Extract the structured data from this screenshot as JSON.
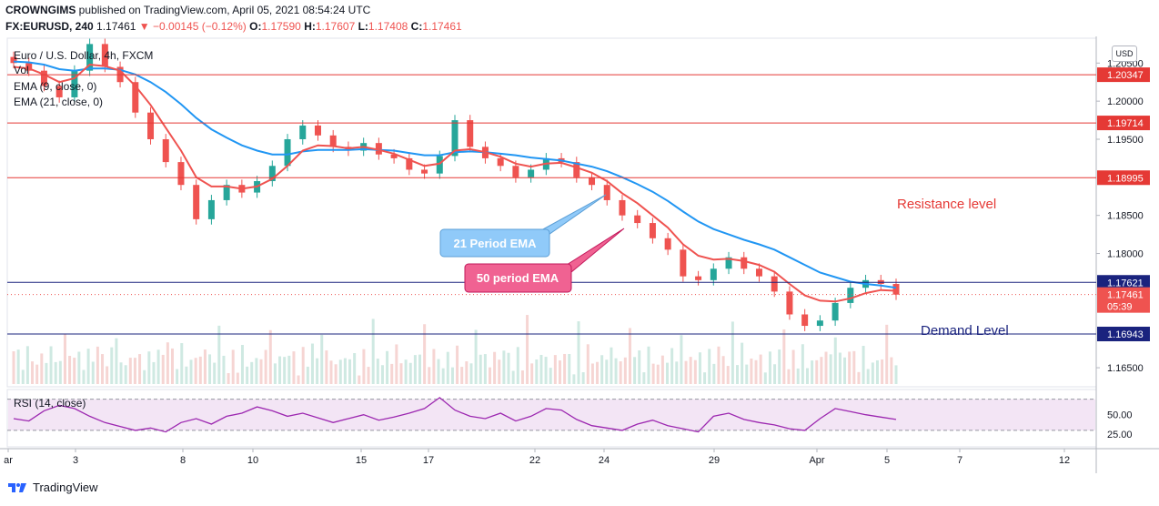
{
  "header": {
    "author": "CROWNGIMS",
    "published": "published on TradingView.com, April 05, 2021 08:54:24 UTC",
    "symbol": "FX:EURUSD, 240",
    "last": "1.17461",
    "change_arrow": "▼",
    "change": "−0.00145 (−0.12%)",
    "o_label": "O:",
    "o": "1.17590",
    "h_label": "H:",
    "h": "1.17607",
    "l_label": "L:",
    "l": "1.17408",
    "c_label": "C:",
    "c": "1.17461"
  },
  "legend": {
    "title": "Euro / U.S. Dollar, 4h, FXCM",
    "vol": "Vol",
    "ema9": "EMA (9, close, 0)",
    "ema21": "EMA (21, close, 0)",
    "rsi": "RSI (14, close)"
  },
  "currency_button": "USD",
  "footer": {
    "brand": "TradingView"
  },
  "colors": {
    "up": "#26a69a",
    "down": "#ef5350",
    "ema_fast": "#ef5350",
    "ema_slow": "#2196f3",
    "resistance": "#e53935",
    "demand": "#1a237e",
    "rsi_line": "#9c27b0",
    "rsi_band": "#f3e5f5",
    "callout_blue": "#90caf9",
    "callout_pink": "#f06292"
  },
  "chart_data": {
    "type": "candlestick",
    "y_ticks": [
      "1.20500",
      "1.20000",
      "1.19500",
      "1.18500",
      "1.18000",
      "1.16500"
    ],
    "ylim": [
      1.1625,
      1.2085
    ],
    "x_ticks": [
      "ar",
      "3",
      "8",
      "10",
      "15",
      "17",
      "22",
      "24",
      "29",
      "Apr",
      "5",
      "7",
      "12"
    ],
    "close_series": [
      1.205,
      1.204,
      1.202,
      1.2005,
      1.204,
      1.2075,
      1.2045,
      1.2025,
      1.1985,
      1.195,
      1.192,
      1.189,
      1.1845,
      1.187,
      1.189,
      1.188,
      1.1895,
      1.1915,
      1.195,
      1.1968,
      1.1955,
      1.194,
      1.1935,
      1.1945,
      1.193,
      1.1925,
      1.191,
      1.1905,
      1.1928,
      1.1975,
      1.194,
      1.1925,
      1.1915,
      1.19,
      1.191,
      1.1925,
      1.192,
      1.19,
      1.189,
      1.187,
      1.185,
      1.184,
      1.182,
      1.1805,
      1.177,
      1.1765,
      1.178,
      1.1795,
      1.178,
      1.177,
      1.175,
      1.172,
      1.1705,
      1.1712,
      1.1735,
      1.1755,
      1.1765,
      1.176,
      1.1746
    ],
    "ema_fast_series": [
      1.2045,
      1.2043,
      1.2035,
      1.2025,
      1.203,
      1.2048,
      1.2046,
      1.204,
      1.202,
      1.1995,
      1.1965,
      1.1935,
      1.19,
      1.1888,
      1.1888,
      1.1885,
      1.1888,
      1.1898,
      1.1915,
      1.1935,
      1.1942,
      1.1941,
      1.1938,
      1.194,
      1.1936,
      1.1931,
      1.1923,
      1.1915,
      1.1918,
      1.1935,
      1.1937,
      1.1933,
      1.1927,
      1.1918,
      1.1914,
      1.1918,
      1.1919,
      1.1913,
      1.1906,
      1.1895,
      1.1879,
      1.1866,
      1.185,
      1.1834,
      1.1812,
      1.1797,
      1.1792,
      1.1793,
      1.179,
      1.1785,
      1.1776,
      1.176,
      1.1745,
      1.1738,
      1.1737,
      1.1741,
      1.1748,
      1.1752,
      1.1751
    ],
    "ema_slow_series": [
      1.2052,
      1.2051,
      1.2048,
      1.2042,
      1.204,
      1.2043,
      1.2043,
      1.2041,
      1.2035,
      1.2025,
      1.2012,
      1.1996,
      1.1978,
      1.1963,
      1.1952,
      1.1942,
      1.1935,
      1.193,
      1.193,
      1.1934,
      1.1936,
      1.1936,
      1.1936,
      1.1937,
      1.1936,
      1.1935,
      1.1932,
      1.1929,
      1.1929,
      1.1933,
      1.1934,
      1.1933,
      1.1931,
      1.1929,
      1.1926,
      1.1924,
      1.1922,
      1.1918,
      1.1914,
      1.1908,
      1.19,
      1.1891,
      1.1881,
      1.1869,
      1.1855,
      1.1842,
      1.1832,
      1.1825,
      1.1818,
      1.1812,
      1.1805,
      1.1795,
      1.1785,
      1.1775,
      1.1769,
      1.1763,
      1.176,
      1.1758,
      1.1755
    ],
    "rsi_series": [
      45,
      42,
      55,
      62,
      58,
      48,
      40,
      35,
      30,
      33,
      28,
      40,
      45,
      38,
      48,
      52,
      60,
      55,
      48,
      52,
      46,
      40,
      45,
      50,
      43,
      47,
      52,
      58,
      72,
      56,
      48,
      45,
      52,
      42,
      48,
      58,
      56,
      44,
      36,
      33,
      30,
      38,
      43,
      36,
      32,
      28,
      48,
      52,
      44,
      40,
      37,
      32,
      30,
      45,
      58,
      54,
      50,
      47,
      44
    ],
    "rsi_ticks": [
      "50.00",
      "25.00"
    ],
    "levels": [
      {
        "label": "1.20347",
        "value": 1.20347,
        "kind": "resistance"
      },
      {
        "label": "1.19714",
        "value": 1.19714,
        "kind": "resistance"
      },
      {
        "label": "1.18995",
        "value": 1.18995,
        "kind": "resistance"
      },
      {
        "label": "1.17621",
        "value": 1.17621,
        "kind": "demand"
      },
      {
        "label": "1.16943",
        "value": 1.16943,
        "kind": "demand"
      }
    ],
    "last_price": {
      "label": "1.17461",
      "countdown": "05:39",
      "value": 1.17461
    },
    "annotations": {
      "resistance": "Resistance level",
      "demand": "Demand Level",
      "ema21": "21 Period EMA",
      "ema50": "50 period EMA"
    }
  }
}
